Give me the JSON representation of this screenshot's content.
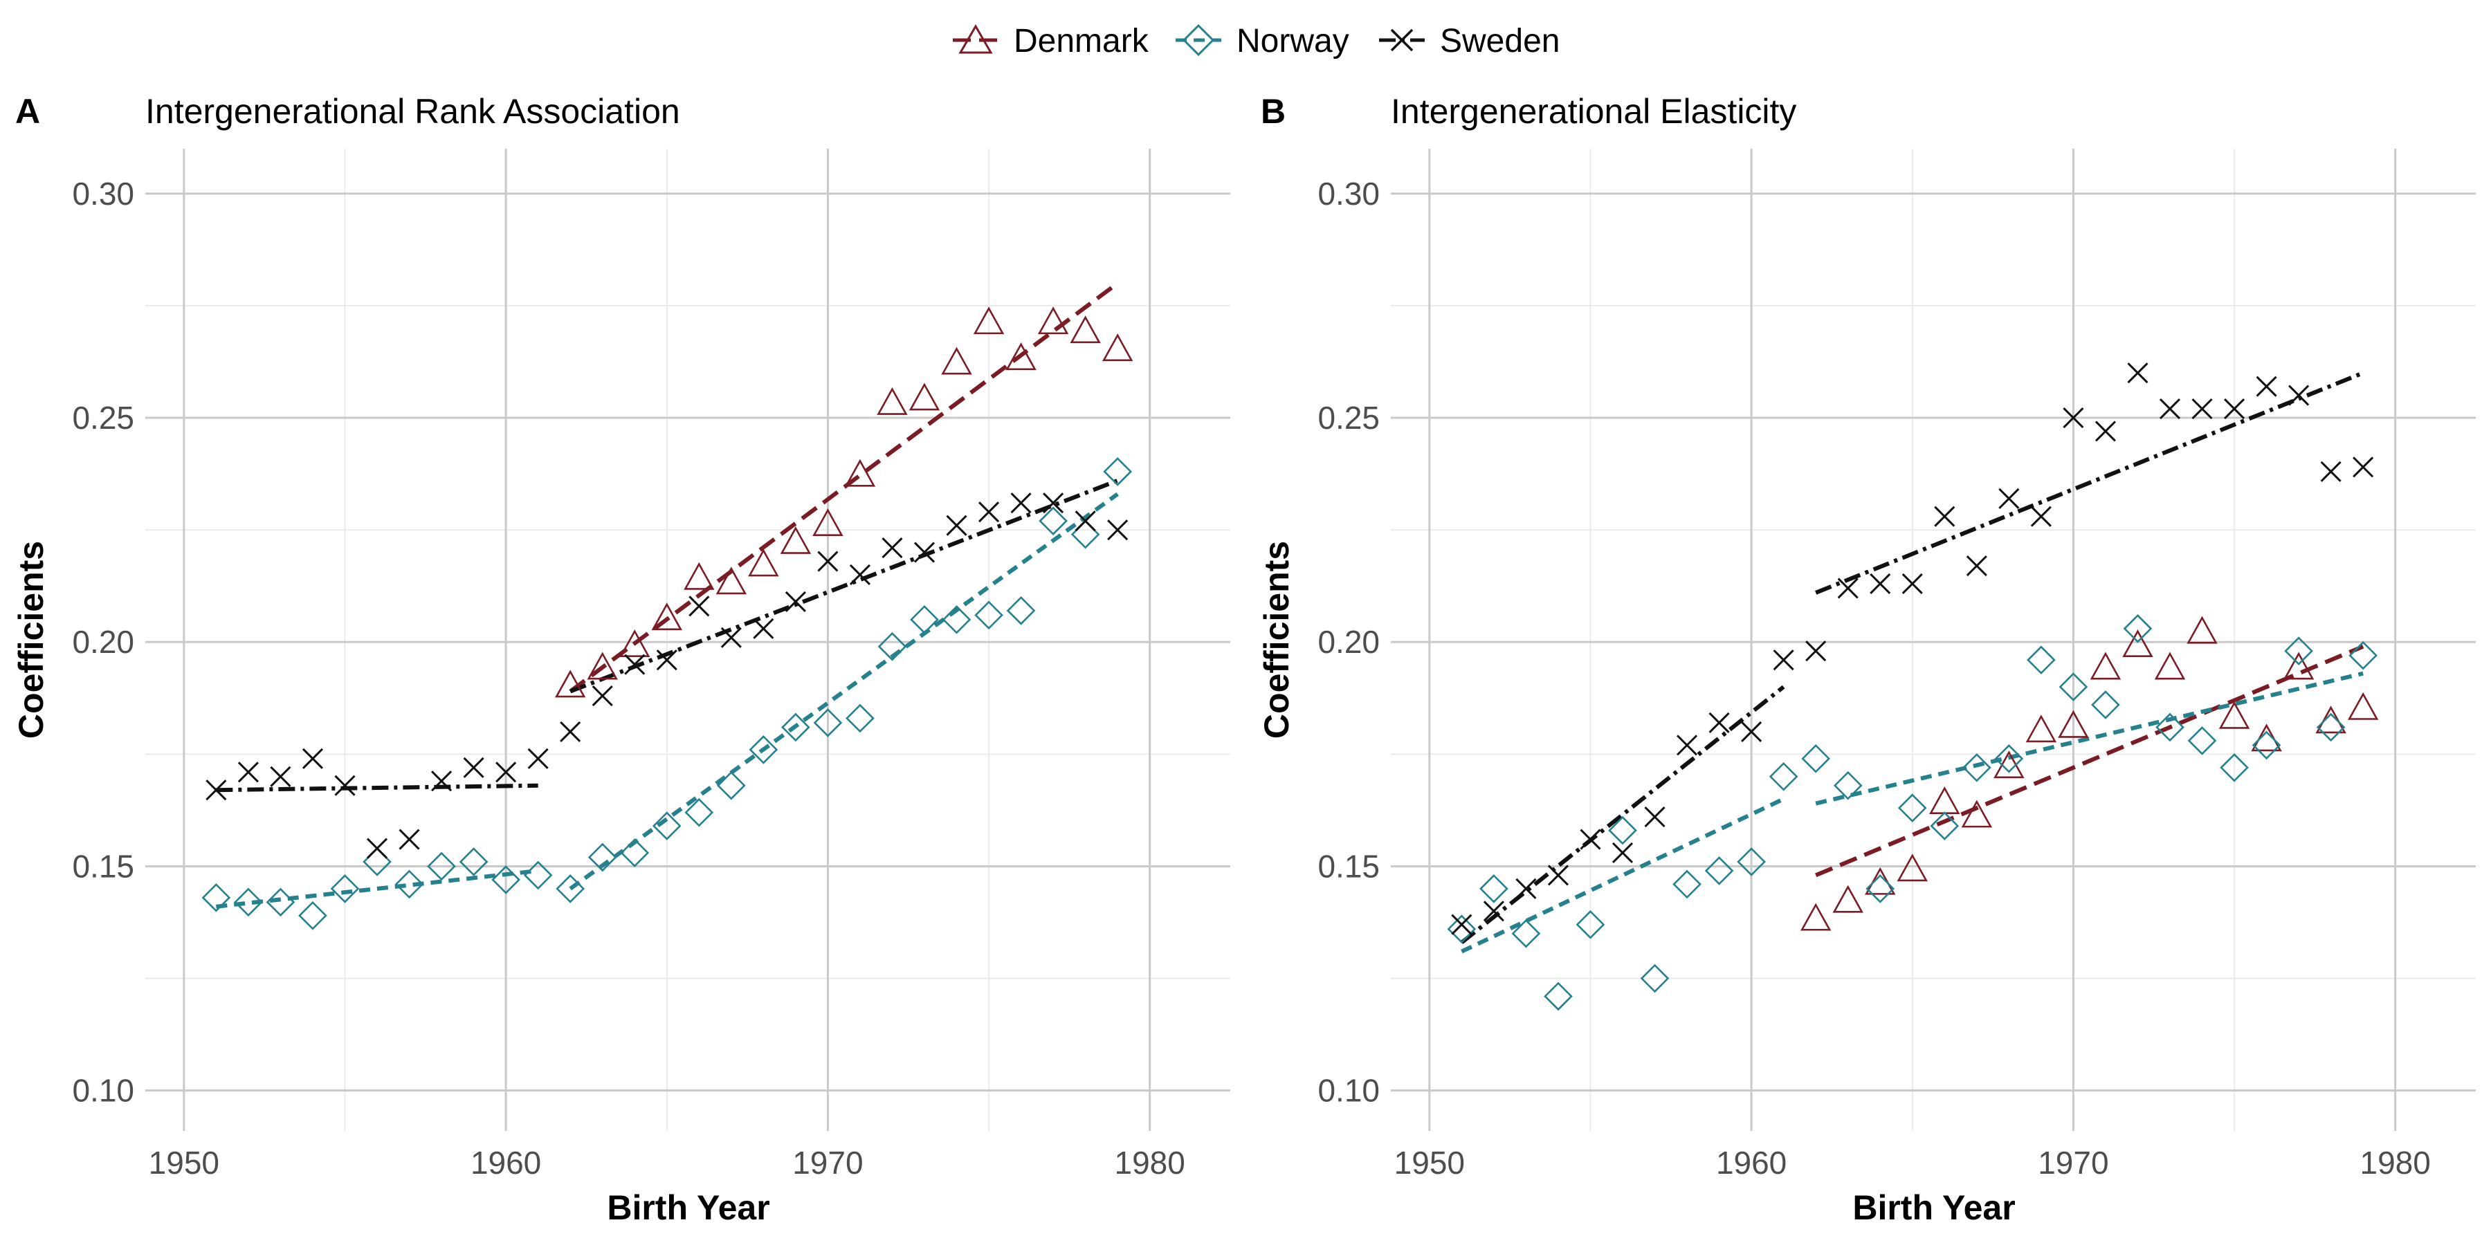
{
  "legend": {
    "items": [
      {
        "label": "Denmark",
        "marker": "triangle",
        "color": "#7b1c25"
      },
      {
        "label": "Norway",
        "marker": "diamond",
        "color": "#25818e"
      },
      {
        "label": "Sweden",
        "marker": "cross",
        "color": "#111111"
      }
    ]
  },
  "chart_data": [
    {
      "type": "scatter",
      "panel_letter": "A",
      "title": "Intergenerational Rank Association",
      "xlabel": "Birth Year",
      "ylabel": "Coefficients",
      "xlim": [
        1948.8,
        1982.5
      ],
      "ylim": [
        0.091,
        0.31
      ],
      "xticks": [
        1950,
        1960,
        1970,
        1980
      ],
      "yticks": [
        0.1,
        0.15,
        0.2,
        0.25,
        0.3
      ],
      "ytick_labels": [
        "0.10",
        "0.15",
        "0.20",
        "0.25",
        "0.30"
      ],
      "grid": true,
      "series": [
        {
          "name": "Denmark",
          "x": [
            1962,
            1963,
            1964,
            1965,
            1966,
            1967,
            1968,
            1969,
            1970,
            1971,
            1972,
            1973,
            1974,
            1975,
            1976,
            1977,
            1978,
            1979
          ],
          "y": [
            0.19,
            0.194,
            0.199,
            0.205,
            0.214,
            0.213,
            0.217,
            0.222,
            0.226,
            0.237,
            0.253,
            0.254,
            0.262,
            0.271,
            0.263,
            0.271,
            0.269,
            0.265
          ],
          "fits": [
            {
              "x": [
                1962,
                1979
              ],
              "y": [
                0.189,
                0.28
              ]
            }
          ]
        },
        {
          "name": "Norway",
          "x": [
            1951,
            1952,
            1953,
            1954,
            1955,
            1956,
            1957,
            1958,
            1959,
            1960,
            1961,
            1962,
            1963,
            1964,
            1965,
            1966,
            1967,
            1968,
            1969,
            1970,
            1971,
            1972,
            1973,
            1974,
            1975,
            1976,
            1977,
            1978,
            1979
          ],
          "y": [
            0.143,
            0.142,
            0.142,
            0.139,
            0.145,
            0.151,
            0.146,
            0.15,
            0.151,
            0.147,
            0.148,
            0.145,
            0.152,
            0.153,
            0.159,
            0.162,
            0.168,
            0.176,
            0.181,
            0.182,
            0.183,
            0.199,
            0.205,
            0.205,
            0.206,
            0.207,
            0.227,
            0.224,
            0.238
          ],
          "fits": [
            {
              "x": [
                1951,
                1961
              ],
              "y": [
                0.141,
                0.149
              ]
            },
            {
              "x": [
                1962,
                1979
              ],
              "y": [
                0.145,
                0.233
              ]
            }
          ]
        },
        {
          "name": "Sweden",
          "x": [
            1951,
            1952,
            1953,
            1954,
            1955,
            1956,
            1957,
            1958,
            1959,
            1960,
            1961,
            1962,
            1963,
            1964,
            1965,
            1966,
            1967,
            1968,
            1969,
            1970,
            1971,
            1972,
            1973,
            1974,
            1975,
            1976,
            1977,
            1978,
            1979
          ],
          "y": [
            0.167,
            0.171,
            0.17,
            0.174,
            0.168,
            0.154,
            0.156,
            0.169,
            0.172,
            0.171,
            0.174,
            0.18,
            0.188,
            0.195,
            0.196,
            0.208,
            0.201,
            0.203,
            0.209,
            0.218,
            0.215,
            0.221,
            0.22,
            0.226,
            0.229,
            0.231,
            0.231,
            0.227,
            0.225
          ],
          "fits": [
            {
              "x": [
                1951,
                1961
              ],
              "y": [
                0.167,
                0.168
              ]
            },
            {
              "x": [
                1962,
                1979
              ],
              "y": [
                0.189,
                0.236
              ]
            }
          ]
        }
      ]
    },
    {
      "type": "scatter",
      "panel_letter": "B",
      "title": "Intergenerational Elasticity",
      "xlabel": "Birth Year",
      "ylabel": "Coefficients",
      "xlim": [
        1948.8,
        1982.5
      ],
      "ylim": [
        0.091,
        0.31
      ],
      "xticks": [
        1950,
        1960,
        1970,
        1980
      ],
      "yticks": [
        0.1,
        0.15,
        0.2,
        0.25,
        0.3
      ],
      "ytick_labels": [
        "0.10",
        "0.15",
        "0.20",
        "0.25",
        "0.30"
      ],
      "grid": true,
      "series": [
        {
          "name": "Denmark",
          "x": [
            1962,
            1963,
            1964,
            1965,
            1966,
            1967,
            1968,
            1969,
            1970,
            1971,
            1972,
            1973,
            1974,
            1975,
            1976,
            1977,
            1978,
            1979
          ],
          "y": [
            0.138,
            0.142,
            0.146,
            0.149,
            0.164,
            0.161,
            0.172,
            0.18,
            0.181,
            0.194,
            0.199,
            0.194,
            0.202,
            0.183,
            0.178,
            0.194,
            0.182,
            0.185
          ],
          "fits": [
            {
              "x": [
                1962,
                1979
              ],
              "y": [
                0.148,
                0.199
              ]
            }
          ]
        },
        {
          "name": "Norway",
          "x": [
            1951,
            1952,
            1953,
            1954,
            1955,
            1956,
            1957,
            1958,
            1959,
            1960,
            1961,
            1962,
            1963,
            1964,
            1965,
            1966,
            1967,
            1968,
            1969,
            1970,
            1971,
            1972,
            1973,
            1974,
            1975,
            1976,
            1977,
            1978,
            1979
          ],
          "y": [
            0.136,
            0.145,
            0.135,
            0.121,
            0.137,
            0.158,
            0.125,
            0.146,
            0.149,
            0.151,
            0.17,
            0.174,
            0.168,
            0.145,
            0.163,
            0.159,
            0.172,
            0.174,
            0.196,
            0.19,
            0.186,
            0.203,
            0.181,
            0.178,
            0.172,
            0.177,
            0.198,
            0.181,
            0.197
          ],
          "fits": [
            {
              "x": [
                1951,
                1961
              ],
              "y": [
                0.131,
                0.165
              ]
            },
            {
              "x": [
                1962,
                1979
              ],
              "y": [
                0.164,
                0.193
              ]
            }
          ]
        },
        {
          "name": "Sweden",
          "x": [
            1951,
            1952,
            1953,
            1954,
            1955,
            1956,
            1957,
            1958,
            1959,
            1960,
            1961,
            1962,
            1963,
            1964,
            1965,
            1966,
            1967,
            1968,
            1969,
            1970,
            1971,
            1972,
            1973,
            1974,
            1975,
            1976,
            1977,
            1978,
            1979
          ],
          "y": [
            0.137,
            0.14,
            0.145,
            0.148,
            0.156,
            0.153,
            0.161,
            0.177,
            0.182,
            0.18,
            0.196,
            0.198,
            0.212,
            0.213,
            0.213,
            0.228,
            0.217,
            0.232,
            0.228,
            0.25,
            0.247,
            0.26,
            0.252,
            0.252,
            0.252,
            0.257,
            0.255,
            0.238,
            0.239
          ],
          "fits": [
            {
              "x": [
                1951,
                1961
              ],
              "y": [
                0.133,
                0.19
              ]
            },
            {
              "x": [
                1962,
                1979
              ],
              "y": [
                0.211,
                0.26
              ]
            }
          ]
        }
      ]
    }
  ]
}
